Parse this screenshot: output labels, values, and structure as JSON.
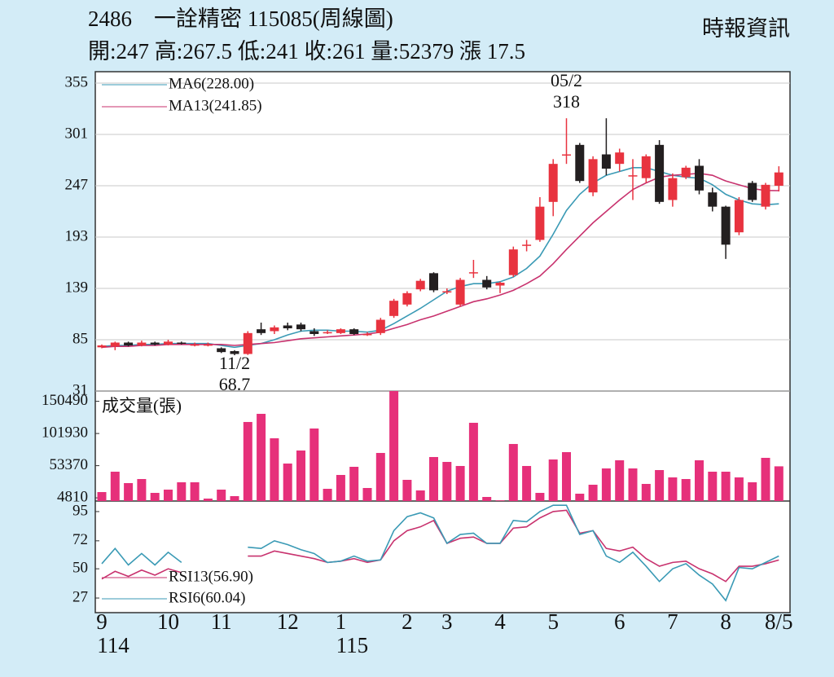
{
  "header": {
    "title": "2486　一詮精密 115085(周線圖)",
    "source": "時報資訊",
    "quote": "開:247 高:267.5 低:241 收:261 量:52379 漲 17.5"
  },
  "chart_data": [
    {
      "type": "candlestick",
      "up_color": "#e8333f",
      "down_color": "#231f20",
      "grid": true,
      "ylim": [
        31,
        367
      ],
      "yticks": [
        355,
        301,
        247,
        193,
        139,
        85,
        31
      ],
      "categories": [
        "9",
        null,
        null,
        null,
        null,
        "10",
        null,
        null,
        null,
        "11",
        null,
        null,
        null,
        null,
        "12",
        null,
        null,
        null,
        "1",
        null,
        null,
        null,
        null,
        "2",
        null,
        null,
        "3",
        null,
        null,
        null,
        "4",
        null,
        null,
        null,
        "5",
        null,
        null,
        null,
        null,
        "6",
        null,
        null,
        null,
        "7",
        null,
        null,
        null,
        "8",
        null,
        null,
        null,
        "8/5"
      ],
      "years": [
        "114",
        null,
        null,
        null,
        null,
        null,
        null,
        null,
        null,
        null,
        null,
        null,
        null,
        null,
        null,
        null,
        null,
        null,
        "115",
        null,
        null,
        null,
        null,
        null,
        null,
        null,
        null,
        null,
        null,
        null,
        null,
        null,
        null,
        null,
        null,
        null,
        null,
        null,
        null,
        null,
        null,
        null,
        null,
        null,
        null,
        null,
        null,
        null,
        null,
        null,
        null,
        null
      ],
      "open": [
        77,
        78,
        82,
        79,
        82,
        80,
        82,
        80,
        80,
        76,
        73,
        70,
        96,
        94,
        100,
        101,
        94,
        93,
        92,
        96,
        91,
        92,
        110,
        122,
        138,
        155,
        136,
        122,
        156,
        148,
        142,
        153,
        185,
        190,
        230,
        280,
        290,
        240,
        280,
        270,
        258,
        255,
        290,
        232,
        256,
        268,
        240,
        225,
        198,
        250,
        225,
        247
      ],
      "high": [
        80,
        83,
        83,
        84,
        83,
        85,
        83,
        82,
        82,
        77,
        74,
        94,
        103,
        100,
        103,
        103,
        97,
        95,
        97,
        97,
        93,
        108,
        128,
        136,
        149,
        156,
        139,
        150,
        169,
        152,
        146,
        183,
        190,
        235,
        275,
        318,
        292,
        278,
        318,
        286,
        275,
        280,
        295,
        260,
        268,
        275,
        245,
        226,
        235,
        252,
        250,
        267.5
      ],
      "low": [
        76,
        74,
        78,
        78,
        79,
        79,
        80,
        78,
        78,
        71,
        68.7,
        69,
        90,
        91,
        95,
        94,
        89,
        91,
        91,
        90,
        89,
        90,
        108,
        120,
        136,
        135,
        133,
        120,
        150,
        138,
        134,
        151,
        178,
        188,
        215,
        270,
        250,
        236,
        258,
        262,
        232,
        250,
        228,
        225,
        254,
        238,
        220,
        170,
        195,
        230,
        222,
        241
      ],
      "close": [
        79,
        82,
        79,
        82,
        80,
        83,
        81,
        80,
        80,
        72,
        70,
        92,
        92,
        98,
        97,
        96,
        91,
        93,
        96,
        91,
        91,
        106,
        126,
        134,
        147,
        137,
        136,
        148,
        156,
        140,
        145,
        180,
        185,
        225,
        270,
        280,
        252,
        275,
        265,
        282,
        258,
        278,
        230,
        255,
        266,
        242,
        225,
        185,
        232,
        232,
        248,
        261
      ],
      "series": [
        {
          "name": "MA6(228.00)",
          "color": "#3a9ab5",
          "values": [
            78,
            79,
            79,
            80,
            80,
            81,
            81,
            81,
            81,
            79,
            77,
            79,
            81,
            85,
            90,
            94,
            95,
            95,
            94,
            94,
            93,
            95,
            102,
            110,
            118,
            127,
            136,
            141,
            144,
            144,
            146,
            151,
            160,
            173,
            196,
            221,
            238,
            250,
            258,
            262,
            266,
            266,
            262,
            258,
            256,
            255,
            248,
            238,
            232,
            228,
            227,
            228
          ]
        },
        {
          "name": "MA13(241.85)",
          "color": "#c8326e",
          "values": [
            77,
            78,
            78,
            79,
            79,
            80,
            80,
            80,
            80,
            80,
            79,
            80,
            81,
            82,
            84,
            86,
            87,
            88,
            89,
            90,
            91,
            93,
            97,
            101,
            106,
            110,
            115,
            120,
            125,
            128,
            132,
            137,
            144,
            152,
            165,
            180,
            194,
            208,
            220,
            232,
            243,
            250,
            256,
            258,
            259,
            260,
            258,
            252,
            248,
            244,
            242,
            241.85
          ]
        }
      ],
      "annotations": [
        {
          "date": "05/2",
          "value": 318
        },
        {
          "date": "11/2",
          "value": 68.7
        }
      ]
    },
    {
      "type": "bar",
      "title": "成交量(張)",
      "color": "#e6307a",
      "ylim": [
        0,
        166000
      ],
      "yticks": [
        150490,
        101930,
        53370,
        4810
      ],
      "values": [
        13530,
        44280,
        27060,
        33210,
        12300,
        17220,
        28290,
        28290,
        3690,
        17220,
        7380,
        119310,
        131610,
        94710,
        56580,
        76260,
        109470,
        18450,
        39360,
        51660,
        19680,
        72570,
        170000,
        31980,
        15990,
        66420,
        59040,
        52890,
        118080,
        6150,
        1000,
        86100,
        52890,
        12300,
        62730,
        73800,
        11070,
        24600,
        49200,
        61500,
        49200,
        25830,
        46740,
        35670,
        33210,
        61500,
        44280,
        44280,
        35670,
        28290,
        65190,
        52379
      ]
    },
    {
      "type": "line",
      "ylim": [
        15.5,
        103.3
      ],
      "yticks": [
        95,
        72,
        50,
        27
      ],
      "series": [
        {
          "name": "RSI13(56.90)",
          "color": "#c8326e",
          "values": [
            42,
            48,
            44,
            49,
            45,
            50,
            47,
            null,
            null,
            null,
            null,
            60,
            60,
            64,
            62,
            60,
            58,
            55,
            56,
            58,
            55,
            57,
            72,
            80,
            83,
            88,
            70,
            74,
            75,
            70,
            70,
            82,
            83,
            90,
            95,
            96,
            78,
            80,
            66,
            64,
            67,
            58,
            52,
            55,
            56,
            50,
            46,
            40,
            52,
            52,
            54,
            56.9
          ]
        },
        {
          "name": "RSI6(60.04)",
          "color": "#3a9ab5",
          "values": [
            54,
            66,
            53,
            62,
            53,
            63,
            55,
            null,
            null,
            null,
            null,
            67,
            66,
            72,
            69,
            65,
            62,
            55,
            56,
            60,
            56,
            57,
            80,
            91,
            94,
            90,
            70,
            77,
            78,
            70,
            70,
            88,
            87,
            95,
            100,
            100,
            77,
            80,
            60,
            55,
            63,
            52,
            40,
            50,
            54,
            45,
            38,
            25,
            51,
            50,
            55,
            60.04
          ]
        }
      ]
    }
  ]
}
